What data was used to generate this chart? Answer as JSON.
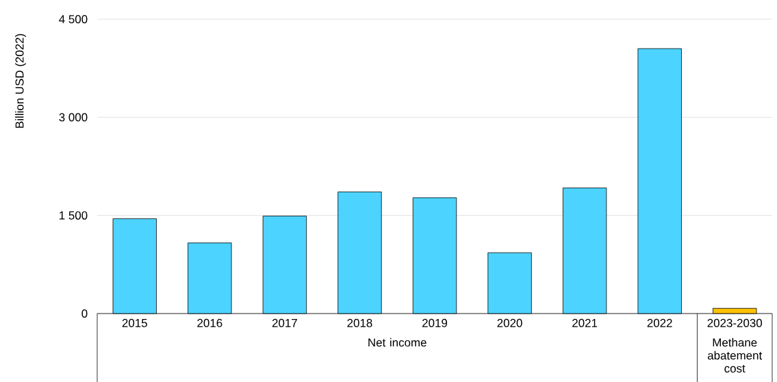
{
  "chart_data": {
    "type": "bar",
    "ylabel": "Billion USD (2022)",
    "categories": [
      "2015",
      "2016",
      "2017",
      "2018",
      "2019",
      "2020",
      "2021",
      "2022",
      "2023-2030"
    ],
    "values": [
      1450,
      1080,
      1490,
      1860,
      1770,
      930,
      1920,
      4050,
      80
    ],
    "colors": [
      "#4dd3ff",
      "#4dd3ff",
      "#4dd3ff",
      "#4dd3ff",
      "#4dd3ff",
      "#4dd3ff",
      "#4dd3ff",
      "#4dd3ff",
      "#ffc000"
    ],
    "ylim": [
      0,
      4500
    ],
    "yticks": [
      0,
      {
        "value": 1500,
        "label": "1 500"
      },
      {
        "value": 3000,
        "label": "3 000"
      },
      {
        "value": 4500,
        "label": "4 500"
      }
    ],
    "grid": "y",
    "annotations": [
      "Net income",
      "Methane abatement cost"
    ]
  }
}
